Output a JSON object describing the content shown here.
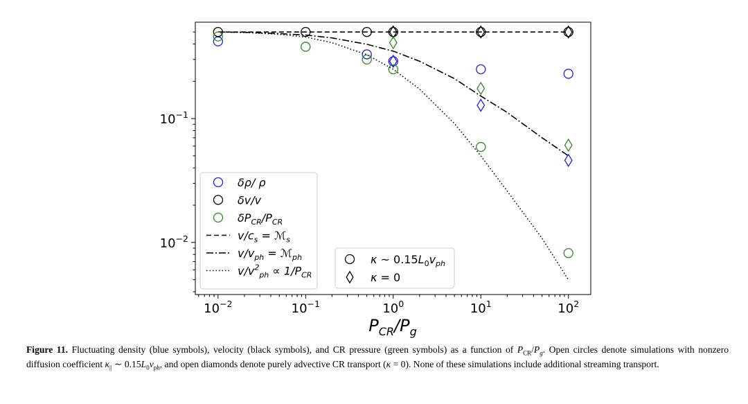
{
  "chart_data": {
    "type": "scatter",
    "x_scale": "log",
    "y_scale": "log",
    "xlim": [
      0.0055,
      180
    ],
    "ylim": [
      0.0038,
      0.6
    ],
    "xlabel": "P_CR/P_g",
    "ylabel": "",
    "x_ticks": [
      0.01,
      0.1,
      1,
      10,
      100
    ],
    "y_ticks": [
      0.01,
      0.1
    ],
    "x_tick_labels": [
      {
        "base": "10",
        "exp": "−2"
      },
      {
        "base": "10",
        "exp": "−1"
      },
      {
        "base": "10",
        "exp": "0"
      },
      {
        "base": "10",
        "exp": "1"
      },
      {
        "base": "10",
        "exp": "2"
      }
    ],
    "y_tick_labels": [
      {
        "base": "10",
        "exp": "−2"
      },
      {
        "base": "10",
        "exp": "−1"
      }
    ],
    "colors": {
      "blue": "#1f1fdc",
      "black": "#000000",
      "green": "#2e8b20"
    },
    "series": [
      {
        "group": "delta_rho",
        "marker": "circle",
        "color": "#1f1fdc",
        "x": [
          0.01,
          0.5,
          1,
          10,
          100
        ],
        "y": [
          0.42,
          0.33,
          0.29,
          0.25,
          0.23
        ]
      },
      {
        "group": "delta_rho",
        "marker": "diamond",
        "color": "#1f1fdc",
        "x": [
          1,
          10,
          100
        ],
        "y": [
          0.29,
          0.128,
          0.046
        ]
      },
      {
        "group": "delta_v",
        "marker": "circle",
        "color": "#000000",
        "x": [
          0.01,
          0.1,
          0.5,
          1,
          10,
          100
        ],
        "y": [
          0.5,
          0.5,
          0.5,
          0.5,
          0.5,
          0.5
        ]
      },
      {
        "group": "delta_v",
        "marker": "diamond",
        "color": "#000000",
        "x": [
          1,
          10,
          100
        ],
        "y": [
          0.5,
          0.5,
          0.5
        ]
      },
      {
        "group": "delta_pcr",
        "marker": "circle",
        "color": "#2e8b20",
        "x": [
          0.01,
          0.1,
          0.5,
          1,
          10,
          100
        ],
        "y": [
          0.46,
          0.38,
          0.3,
          0.25,
          0.059,
          0.0082
        ]
      },
      {
        "group": "delta_pcr",
        "marker": "diamond",
        "color": "#2e8b20",
        "x": [
          1,
          10,
          100
        ],
        "y": [
          0.41,
          0.175,
          0.061
        ]
      }
    ],
    "lines": [
      {
        "id": "mach_s",
        "style": "dashed",
        "x": [
          0.01,
          0.1,
          1,
          10,
          100
        ],
        "y": [
          0.5,
          0.5,
          0.5,
          0.5,
          0.5
        ]
      },
      {
        "id": "mach_ph",
        "style": "dashdot",
        "x": [
          0.01,
          0.02,
          0.05,
          0.1,
          0.2,
          0.5,
          1,
          2,
          5,
          10,
          20,
          50,
          100
        ],
        "y": [
          0.5,
          0.497,
          0.486,
          0.472,
          0.448,
          0.398,
          0.35,
          0.29,
          0.21,
          0.152,
          0.112,
          0.07,
          0.05
        ]
      },
      {
        "id": "inv_pcr",
        "style": "dotted",
        "x": [
          0.01,
          0.02,
          0.05,
          0.1,
          0.2,
          0.5,
          1,
          2,
          5,
          10,
          20,
          50,
          100
        ],
        "y": [
          0.5,
          0.495,
          0.479,
          0.455,
          0.41,
          0.328,
          0.25,
          0.173,
          0.091,
          0.05,
          0.026,
          0.0108,
          0.005
        ]
      }
    ],
    "legend_main": {
      "position": "lower-left",
      "entries": [
        {
          "marker": "circle",
          "color": "#1f1fdc",
          "label": "δρ/ ρ"
        },
        {
          "marker": "circle",
          "color": "#000000",
          "label": "δv/v"
        },
        {
          "marker": "circle",
          "color": "#2e8b20",
          "label": "δP_CR/P_CR"
        },
        {
          "marker": "dashed",
          "color": "#000000",
          "label": "v/c_s = M_s"
        },
        {
          "marker": "dashdot",
          "color": "#000000",
          "label": "v/v_ph = M_ph"
        },
        {
          "marker": "dotted",
          "color": "#000000",
          "label": "v/v_ph^2 ∝ 1/P_CR"
        }
      ]
    },
    "legend_kappa": {
      "position": "lower-center",
      "entries": [
        {
          "marker": "circle",
          "label": "κ ~ 0.15L_0v_ph"
        },
        {
          "marker": "diamond",
          "label": "κ = 0"
        }
      ]
    }
  },
  "caption": {
    "label": "Figure 11.",
    "text": "Fluctuating density (blue symbols), velocity (black symbols), and CR pressure (green symbols) as a function of P_CR/P_g. Open circles denote simulations with nonzero diffusion coefficient κ_|| ~ 0.15L_0v_ph, and open diamonds denote purely advective CR transport (κ = 0). None of these simulations include additional streaming transport."
  }
}
